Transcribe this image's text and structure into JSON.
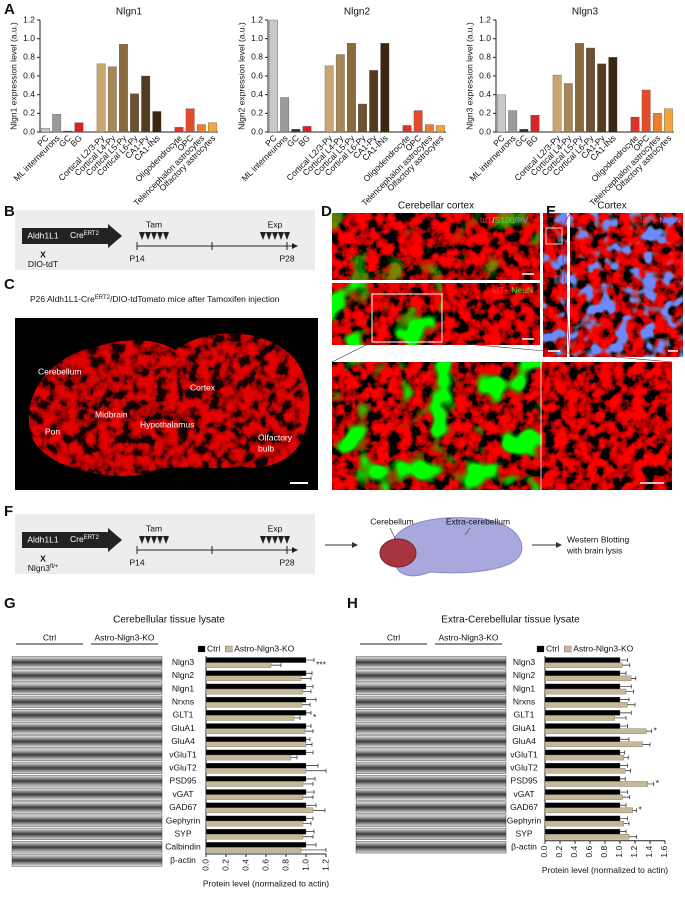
{
  "panel_labels": [
    "A",
    "B",
    "C",
    "D",
    "E",
    "F",
    "G",
    "H"
  ],
  "panel_b": {
    "gene": "Aldh1L1",
    "cre": "Cre",
    "cre_sup": "ERT2",
    "cross": "X",
    "partner": "DIO-tdT",
    "treatment": "Tam",
    "endpoint": "Exp",
    "start": "P14",
    "end": "P28"
  },
  "panel_c": {
    "caption": [
      "P26 Aldh1L1-Cre",
      "ERT2",
      "/DIO-tdTomato mice after Tamoxifen injection"
    ],
    "regions": [
      "Cerebellum",
      "Cortex",
      "Midbrain",
      "Hypothalamus",
      "Pon",
      [
        "Olfactory",
        "bulb"
      ]
    ]
  },
  "panel_d": {
    "title": "Cerebellar cortex",
    "stain_top": [
      "tdT",
      "/",
      "S100",
      "/PV"
    ],
    "stain_mid": [
      "tdT+",
      "NeuN"
    ]
  },
  "panel_e": {
    "title": "Cortex",
    "stain": [
      "tdT+",
      "NeuN"
    ]
  },
  "panel_f": {
    "gene": "Aldh1L1",
    "cre": "Cre",
    "cre_sup": "ERT2",
    "cross": "X",
    "partner": "Nlgn3",
    "partner_sup": "fl/+",
    "treatment": "Tam",
    "endpoint": "Exp",
    "start": "P14",
    "end": "P28",
    "regions": [
      "Cerebellum",
      "Extra-cerebellum"
    ],
    "method": [
      "Western Blotting",
      "with brain lysis"
    ]
  },
  "chart_data": [
    {
      "type": "bar",
      "title": "Nlgn1",
      "ylabel": "Nlgn1 expression level (a.u.)",
      "categories": [
        "PC",
        "ML interneurons",
        "GC",
        "BG",
        "Cortical L2/3-Py",
        "Cortical L4-Py",
        "Cortical L5-Py",
        "Cortical L6-Py",
        "CA1-Py",
        "CA1-INs",
        "Oligodendrocyte",
        "OPC",
        "Telencephalon astrocytes",
        "Olfactory astrocytes"
      ],
      "values": [
        0.04,
        0.19,
        0.01,
        0.1,
        0.73,
        0.7,
        0.94,
        0.41,
        0.6,
        0.22,
        0.05,
        0.25,
        0.08,
        0.1
      ],
      "colors": [
        "#c8c8c8",
        "#9a9a9a",
        "#333333",
        "#d9232a",
        "#c9a66f",
        "#a98656",
        "#8a6a3c",
        "#6e512e",
        "#533b1e",
        "#3a2712",
        "#e0302a",
        "#e24c2a",
        "#ee7c2b",
        "#f3a43a"
      ],
      "ylim": [
        0,
        1.2
      ],
      "yticks": [
        {
          "value": 0,
          "label": "0.0"
        },
        0.2,
        0.4,
        0.6,
        0.8,
        {
          "value": 1,
          "label": "1.0"
        },
        1.2
      ]
    },
    {
      "type": "bar",
      "title": "Nlgn2",
      "ylabel": "Nlgn2 expression level (a.u.)",
      "categories": [
        "PC",
        "ML interneurons",
        "GC",
        "BG",
        "Cortical L2/3-Py",
        "Cortical L4-Py",
        "Cortical L5-Py",
        "Cortical L6-Py",
        "CA1-Py",
        "CA1-INs",
        "Oligodendrocyte",
        "OPC",
        "Telencephalon astrocytes",
        "Olfactory astrocytes"
      ],
      "values": [
        1.2,
        0.37,
        0.03,
        0.06,
        0.71,
        0.83,
        0.95,
        0.3,
        0.66,
        0.95,
        0.07,
        0.23,
        0.08,
        0.07
      ],
      "colors": [
        "#c8c8c8",
        "#9a9a9a",
        "#333333",
        "#d9232a",
        "#c9a66f",
        "#a98656",
        "#8a6a3c",
        "#6e512e",
        "#533b1e",
        "#3a2712",
        "#e0302a",
        "#e24c2a",
        "#ee7c2b",
        "#f3a43a"
      ],
      "ylim": [
        0,
        1.2
      ],
      "yticks": [
        {
          "value": 0,
          "label": "0.0"
        },
        0.2,
        0.4,
        0.6,
        0.8,
        {
          "value": 1,
          "label": "1.0"
        },
        1.2
      ]
    },
    {
      "type": "bar",
      "title": "Nlgn3",
      "ylabel": "Nlgn3 expression level (a.u.)",
      "categories": [
        "PC",
        "ML interneurons",
        "GC",
        "BG",
        "Cortical L2/3-Py",
        "Cortical L4-Py",
        "Cortical L5-Py",
        "Cortical L6-Py",
        "CA1-Py",
        "CA1-INs",
        "Oligodendrocyte",
        "OPC",
        "Telencephalon astrocytes",
        "Olfactory astrocytes"
      ],
      "values": [
        0.4,
        0.23,
        0.03,
        0.18,
        0.61,
        0.52,
        0.95,
        0.9,
        0.73,
        0.8,
        0.16,
        0.45,
        0.2,
        0.25
      ],
      "colors": [
        "#c8c8c8",
        "#9a9a9a",
        "#333333",
        "#d9232a",
        "#c9a66f",
        "#a98656",
        "#8a6a3c",
        "#6e512e",
        "#533b1e",
        "#3a2712",
        "#e0302a",
        "#e24c2a",
        "#ee7c2b",
        "#f3a43a"
      ],
      "ylim": [
        0,
        1.2
      ],
      "yticks": [
        {
          "value": 0,
          "label": "0.0"
        },
        0.2,
        0.4,
        0.6,
        0.8,
        {
          "value": 1,
          "label": "1.0"
        },
        1.2
      ]
    },
    {
      "type": "bar",
      "orientation": "horizontal",
      "title": "Cerebellular tissue lysate",
      "xlabel": "Protein level (normalized to actin)",
      "blot": {
        "groups": [
          "Ctrl",
          "Astro-Nlgn3-KO"
        ],
        "loading_control": "β-actin"
      },
      "categories": [
        "Nlgn3",
        "Nlgn2",
        "Nlgn1",
        "Nrxns",
        "GLT1",
        "GluA1",
        "GluA4",
        "vGluT1",
        "vGluT2",
        "PSD95",
        "vGAT",
        "GAD67",
        "Gephyrin",
        "SYP",
        "Calbindin"
      ],
      "series": [
        {
          "name": "Ctrl",
          "color": "#000000",
          "values": [
            1,
            1,
            1,
            1,
            1,
            1,
            1,
            1,
            1,
            1,
            1,
            1,
            1,
            1,
            1
          ],
          "errors": [
            0.08,
            0.06,
            0.07,
            0.1,
            0.05,
            0.05,
            0.04,
            0.07,
            0.12,
            0.09,
            0.08,
            0.1,
            0.07,
            0.08,
            0.1
          ]
        },
        {
          "name": "Astro-Nlgn3-KO",
          "color": "#c8b89a",
          "values": [
            0.65,
            0.95,
            0.97,
            0.96,
            0.88,
            0.99,
            1,
            0.85,
            1,
            0.97,
            0.97,
            1.07,
            0.97,
            0.97,
            0.95
          ],
          "errors": [
            0.1,
            0.1,
            0.08,
            0.08,
            0.06,
            0.08,
            0.06,
            0.06,
            0.2,
            0.1,
            0.1,
            0.12,
            0.08,
            0.1,
            0.25
          ]
        }
      ],
      "significance": [
        "***",
        null,
        null,
        null,
        "*",
        null,
        null,
        null,
        null,
        null,
        null,
        null,
        null,
        null,
        null
      ],
      "xlim": [
        0,
        1.2
      ],
      "xticks": [
        {
          "value": 0,
          "label": "0.0"
        },
        0.2,
        0.4,
        0.6,
        0.8,
        {
          "value": 1,
          "label": "1.0"
        },
        1.2
      ]
    },
    {
      "type": "bar",
      "orientation": "horizontal",
      "title": "Extra-Cerebellular tissue lysate",
      "xlabel": "Protein level (normalized to actin)",
      "blot": {
        "groups": [
          "Ctrl",
          "Astro-Nlgn3-KO"
        ],
        "loading_control": "β-actin"
      },
      "categories": [
        "Nlgn3",
        "Nlgn2",
        "Nlgn1",
        "Nrxns",
        "GLT1",
        "GluA1",
        "GluA4",
        "vGluT1",
        "vGluT2",
        "PSD95",
        "vGAT",
        "GAD67",
        "Gephyrin",
        "SYP"
      ],
      "series": [
        {
          "name": "Ctrl",
          "color": "#000000",
          "values": [
            1,
            1,
            1,
            1,
            1,
            1,
            1,
            1,
            1,
            1,
            1,
            1,
            1,
            1
          ],
          "errors": [
            0.1,
            0.08,
            0.15,
            0.12,
            0.15,
            0.1,
            0.12,
            0.06,
            0.1,
            0.07,
            0.1,
            0.08,
            0.1,
            0.08
          ]
        },
        {
          "name": "Astro-Nlgn3-KO",
          "color": "#c8b89a",
          "values": [
            1.03,
            1.15,
            1.08,
            1.1,
            0.93,
            1.35,
            1.3,
            1.05,
            1.07,
            1.37,
            1.03,
            1.17,
            1.05,
            1.12
          ],
          "errors": [
            0.1,
            0.06,
            0.1,
            0.1,
            0.15,
            0.07,
            0.1,
            0.06,
            0.07,
            0.08,
            0.1,
            0.05,
            0.07,
            0.1
          ]
        }
      ],
      "significance": [
        null,
        null,
        null,
        null,
        null,
        "*",
        null,
        null,
        null,
        "*",
        null,
        "*",
        null,
        null
      ],
      "xlim": [
        0,
        1.6
      ],
      "xticks": [
        {
          "value": 0,
          "label": "0.0"
        },
        0.2,
        0.4,
        0.6,
        0.8,
        {
          "value": 1,
          "label": "1.0"
        },
        1.2,
        1.4,
        1.6
      ]
    }
  ]
}
